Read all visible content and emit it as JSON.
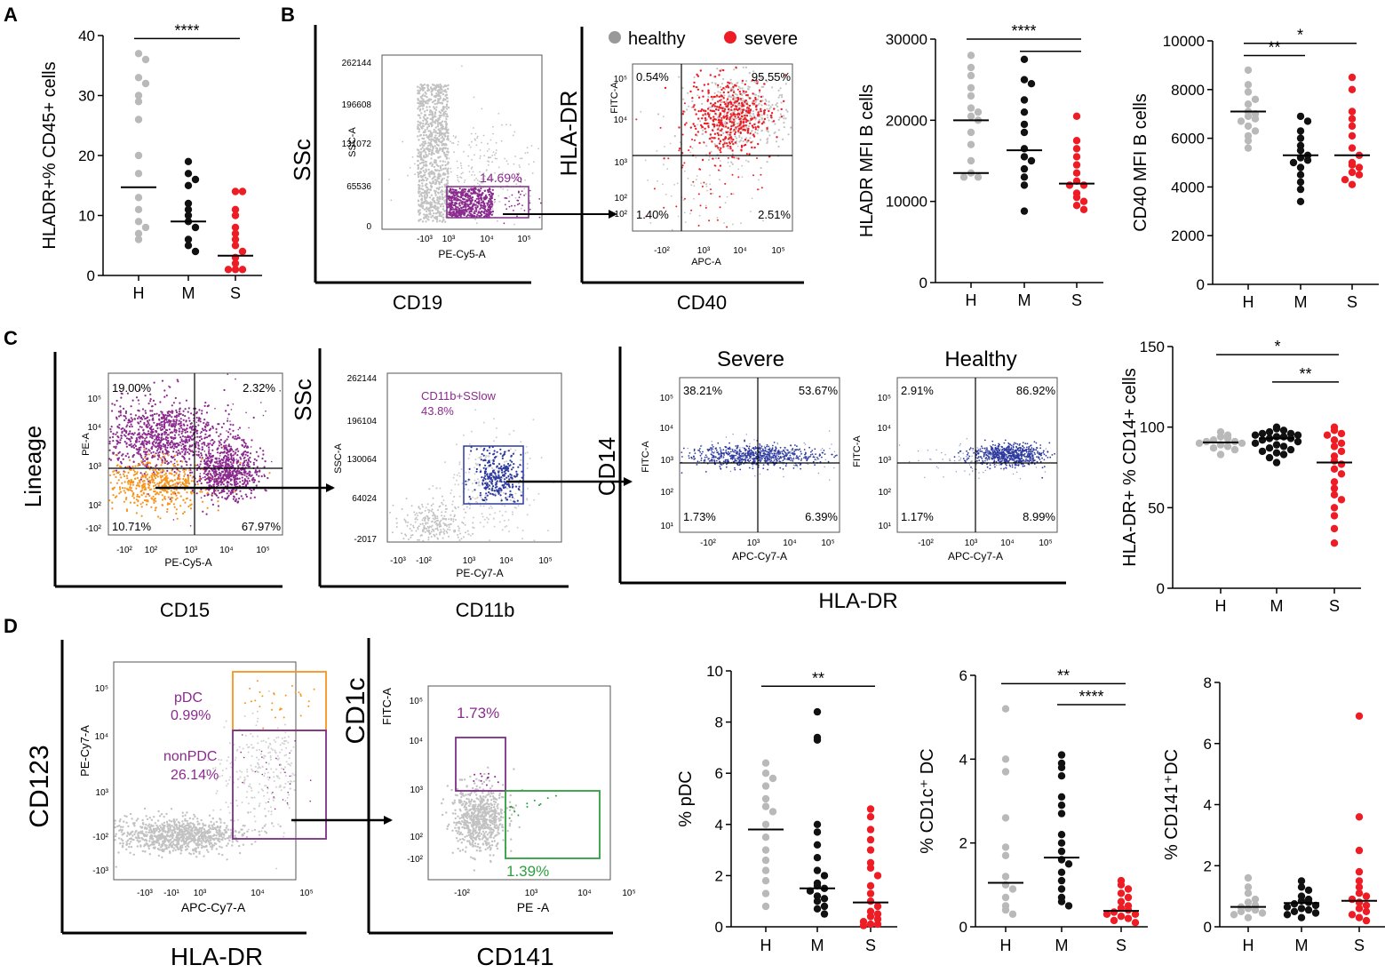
{
  "panel_labels": {
    "A": "A",
    "B": "B",
    "C": "C",
    "D": "D"
  },
  "colors": {
    "healthy": "#b9b9b9",
    "moderate": "#111111",
    "severe": "#ee1c24",
    "purple": "#8b2a8e",
    "orange": "#f7941d",
    "blue": "#2e3a9f",
    "green": "#2e9e3e",
    "gate_purple": "#7d2e86"
  },
  "groups": [
    "H",
    "M",
    "S"
  ],
  "legend": {
    "healthy": "healthy",
    "severe": "severe"
  },
  "flow": {
    "b1": {
      "big_x": "CD19",
      "big_y": "SSc",
      "small_x": "PE-Cy5-A",
      "small_y": "SSC-A",
      "yticks": [
        "262144",
        "196608",
        "131072",
        "65536",
        "0"
      ],
      "xticks": [
        "-10³",
        "10³",
        "10⁴",
        "10⁵"
      ],
      "gate": "14.69%"
    },
    "b2": {
      "big_x": "CD40",
      "big_y": "HLA-DR",
      "small_x": "APC-A",
      "small_y": "FITC-A",
      "quad": [
        "0.54%",
        "95.55%",
        "1.40%",
        "2.51%"
      ],
      "yticks": [
        "10⁵",
        "10⁴",
        "10³",
        "10²",
        "-10²"
      ],
      "xticks": [
        "-10²",
        "10³",
        "10⁴",
        "10⁵"
      ]
    },
    "c1": {
      "big_x": "CD15",
      "big_y": "Lineage",
      "small_x": "PE-Cy5-A",
      "small_y": "PE-A",
      "quad": [
        "19.00%",
        "2.32%",
        "10.71%",
        "67.97%"
      ],
      "yticks": [
        "10⁵",
        "10⁴",
        "10³",
        "10²",
        "-10²"
      ],
      "xticks": [
        "-10²",
        "10²",
        "10³",
        "10⁴",
        "10⁵"
      ]
    },
    "c2": {
      "big_x": "CD11b",
      "big_y": "SSc",
      "small_x": "PE-Cy7-A",
      "small_y": "SSC-A",
      "gate1": "CD11b+SSlow",
      "gate2": "43.8%",
      "yticks": [
        "262144",
        "196104",
        "130064",
        "64024",
        "-2017"
      ],
      "xticks": [
        "-10³",
        "-10²",
        "10³",
        "10⁴",
        "10⁵"
      ]
    },
    "c3": {
      "title": "Severe",
      "small_x": "APC-Cy7-A",
      "small_y": "FITC-A",
      "quad": [
        "38.21%",
        "53.67%",
        "1.73%",
        "6.39%"
      ],
      "yticks": [
        "10⁵",
        "10⁴",
        "10³",
        "10²",
        "10¹"
      ],
      "xticks": [
        "-10²",
        "10³",
        "10⁴",
        "10⁵"
      ]
    },
    "c4": {
      "title": "Healthy",
      "small_x": "APC-Cy7-A",
      "small_y": "FITC-A",
      "quad": [
        "2.91%",
        "86.92%",
        "1.17%",
        "8.99%"
      ],
      "yticks": [
        "10⁵",
        "10⁴",
        "10³",
        "10²",
        "10¹"
      ],
      "xticks": [
        "-10²",
        "10³",
        "10⁴",
        "10⁵"
      ]
    },
    "c_shared": {
      "big_y": "CD14",
      "big_x": "HLA-DR"
    },
    "d1": {
      "big_x": "HLA-DR",
      "big_y": "CD123",
      "small_x": "APC-Cy7-A",
      "small_y": "PE-Cy7-A",
      "pdc1": "pDC",
      "pdc2": "0.99%",
      "npdc1": "nonPDC",
      "npdc2": "26.14%",
      "yticks": [
        "10⁵",
        "10⁴",
        "10³",
        "-10²",
        "-10³"
      ],
      "xticks": [
        "-10³",
        "-10¹",
        "10³",
        "10⁴",
        "10⁵"
      ]
    },
    "d2": {
      "big_x": "CD141",
      "big_y": "CD1c",
      "small_x": "PE -A",
      "small_y": "FITC-A",
      "gate1": "1.73%",
      "gate2": "1.39%",
      "yticks": [
        "10⁵",
        "10⁴",
        "10³",
        "10²",
        "-10²"
      ],
      "xticks": [
        "-10²",
        "10³",
        "10⁴",
        "10⁵"
      ]
    }
  },
  "chart_data": [
    {
      "id": "A",
      "type": "scatter",
      "ylabel": "HLADR+% CD45+ cells",
      "ylim": [
        0,
        40
      ],
      "yticks": [
        "0",
        "10",
        "20",
        "30",
        "40"
      ],
      "series": [
        {
          "name": "H",
          "values": [
            37,
            36,
            33,
            32,
            30,
            29,
            26,
            20,
            17,
            13,
            11,
            9,
            8,
            7,
            6
          ],
          "median": 14.7
        },
        {
          "name": "M",
          "values": [
            19,
            17,
            16,
            15,
            12,
            11,
            10,
            9,
            8,
            6,
            5,
            4
          ],
          "median": 9
        },
        {
          "name": "S",
          "values": [
            14,
            14,
            11,
            10,
            8,
            7,
            6,
            5,
            4,
            3,
            2,
            1,
            1,
            1
          ],
          "median": 3.3
        }
      ],
      "sig": [
        {
          "from": 0,
          "to": 2,
          "label": "****",
          "y": 39.5
        }
      ]
    },
    {
      "id": "B3",
      "type": "scatter",
      "ylabel": "HLADR MFI B cells",
      "ylim": [
        0,
        30000
      ],
      "yticks": [
        "0",
        "10000",
        "20000",
        "30000"
      ],
      "series": [
        {
          "name": "H",
          "values": [
            28000,
            26500,
            25500,
            24000,
            23000,
            21500,
            21000,
            20500,
            20000,
            18500,
            17000,
            15000,
            13500,
            13000,
            13000
          ],
          "median": 20000,
          "median2": 13500
        },
        {
          "name": "M",
          "values": [
            27500,
            25000,
            24500,
            22500,
            21000,
            19500,
            18500,
            16500,
            15500,
            15000,
            14000,
            13000,
            12000,
            8800
          ],
          "median": 16300
        },
        {
          "name": "S",
          "values": [
            20500,
            17500,
            16500,
            15500,
            14500,
            13500,
            12500,
            12000,
            12000,
            11000,
            10500,
            10000,
            9500,
            9000
          ],
          "median": 12200
        }
      ],
      "sig": [
        {
          "from": 0,
          "to": 2,
          "label": "****",
          "y": 30000
        },
        {
          "from": 1,
          "to": 2,
          "label": "",
          "y": 28500
        }
      ]
    },
    {
      "id": "B4",
      "type": "scatter",
      "ylabel": "CD40 MFI B cells",
      "ylim": [
        0,
        10000
      ],
      "yticks": [
        "0",
        "2000",
        "4000",
        "6000",
        "8000",
        "10000"
      ],
      "series": [
        {
          "name": "H",
          "values": [
            8800,
            8200,
            7900,
            7600,
            7400,
            7100,
            7000,
            6900,
            6800,
            6700,
            6500,
            6300,
            6100,
            5900,
            5600
          ],
          "median": 7100
        },
        {
          "name": "M",
          "values": [
            6900,
            6700,
            6300,
            6000,
            5700,
            5500,
            5300,
            5200,
            5100,
            5000,
            4800,
            4500,
            4200,
            3900,
            3400
          ],
          "median": 5300
        },
        {
          "name": "S",
          "values": [
            8500,
            8000,
            7100,
            6800,
            6500,
            6100,
            5600,
            5300,
            5000,
            4900,
            4800,
            4600,
            4500,
            4300,
            4100
          ],
          "median": 5300
        }
      ],
      "sig": [
        {
          "from": 0,
          "to": 1,
          "label": "**",
          "y": 9400
        },
        {
          "from": 0,
          "to": 2,
          "label": "*",
          "y": 9900
        }
      ]
    },
    {
      "id": "C5",
      "type": "scatter",
      "ylabel": "HLA-DR+ % CD14+ cells",
      "ylim": [
        0,
        150
      ],
      "yticks": [
        "0",
        "50",
        "100",
        "150"
      ],
      "series": [
        {
          "name": "H",
          "values": [
            97,
            95,
            94,
            93,
            92,
            91,
            91,
            90,
            90,
            89,
            88,
            87,
            86,
            83
          ],
          "median": 90.5
        },
        {
          "name": "M",
          "values": [
            100,
            99,
            98,
            97,
            96,
            96,
            95,
            95,
            94,
            94,
            93,
            93,
            92,
            91,
            90,
            89,
            88,
            87,
            86,
            85,
            84,
            83,
            81,
            78
          ],
          "median": 93
        },
        {
          "name": "S",
          "values": [
            100,
            98,
            96,
            95,
            92,
            90,
            88,
            85,
            82,
            79,
            77,
            74,
            71,
            66,
            62,
            58,
            55,
            50,
            45,
            37,
            28
          ],
          "median": 78
        }
      ],
      "sig": [
        {
          "from": 0,
          "to": 2,
          "label": "*",
          "y": 145
        },
        {
          "from": 1,
          "to": 2,
          "label": "**",
          "y": 128
        }
      ]
    },
    {
      "id": "D3",
      "type": "scatter",
      "ylabel": "% pDC",
      "ylim": [
        0,
        10
      ],
      "yticks": [
        "0",
        "2",
        "4",
        "6",
        "8",
        "10"
      ],
      "series": [
        {
          "name": "H",
          "values": [
            6.4,
            6.0,
            5.8,
            5.5,
            5.0,
            4.7,
            4.5,
            4.0,
            3.5,
            3.0,
            2.6,
            2.2,
            1.8,
            1.3,
            0.8
          ],
          "median": 3.8
        },
        {
          "name": "M",
          "values": [
            8.4,
            7.4,
            7.3,
            4.0,
            3.7,
            3.2,
            2.7,
            2.2,
            2.0,
            1.7,
            1.6,
            1.5,
            1.4,
            1.2,
            1.1,
            1.0,
            0.8,
            0.7,
            0.5
          ],
          "median": 1.5
        },
        {
          "name": "S",
          "values": [
            4.6,
            4.3,
            3.8,
            3.4,
            3.0,
            2.5,
            2.3,
            2.0,
            1.6,
            1.3,
            1.0,
            0.8,
            0.6,
            0.5,
            0.4,
            0.3,
            0.2,
            0.1,
            0.1,
            0.05
          ],
          "median": 0.95
        }
      ],
      "sig": [
        {
          "from": 0,
          "to": 2,
          "label": "**",
          "y": 9.4
        }
      ]
    },
    {
      "id": "D4",
      "type": "scatter",
      "ylabel": "% CD1c⁺ DC",
      "ylim": [
        0,
        6
      ],
      "yticks": [
        "0",
        "2",
        "4",
        "6"
      ],
      "series": [
        {
          "name": "H",
          "values": [
            5.2,
            4.0,
            3.7,
            2.6,
            1.9,
            1.7,
            1.2,
            1.0,
            0.9,
            0.7,
            0.5,
            0.4,
            0.3
          ],
          "median": 1.05
        },
        {
          "name": "M",
          "values": [
            4.1,
            3.9,
            3.8,
            3.6,
            3.1,
            2.9,
            2.7,
            2.2,
            2.0,
            1.8,
            1.6,
            1.5,
            1.3,
            1.1,
            0.9,
            0.7,
            0.6,
            0.5
          ],
          "median": 1.65
        },
        {
          "name": "S",
          "values": [
            1.1,
            1.0,
            0.9,
            0.8,
            0.7,
            0.6,
            0.5,
            0.45,
            0.4,
            0.35,
            0.3,
            0.3,
            0.25,
            0.2,
            0.15,
            0.1
          ],
          "median": 0.38
        }
      ],
      "sig": [
        {
          "from": 0,
          "to": 2,
          "label": "**",
          "y": 5.8
        },
        {
          "from": 1,
          "to": 2,
          "label": "****",
          "y": 5.3
        }
      ]
    },
    {
      "id": "D5",
      "type": "scatter",
      "ylabel": "% CD141⁺DC",
      "ylim": [
        0,
        8
      ],
      "yticks": [
        "0",
        "2",
        "4",
        "6",
        "8"
      ],
      "series": [
        {
          "name": "H",
          "values": [
            1.6,
            1.3,
            1.1,
            0.9,
            0.8,
            0.7,
            0.65,
            0.6,
            0.55,
            0.5,
            0.45,
            0.4,
            0.3
          ],
          "median": 0.65
        },
        {
          "name": "M",
          "values": [
            1.5,
            1.3,
            1.2,
            1.0,
            0.9,
            0.85,
            0.8,
            0.75,
            0.7,
            0.65,
            0.6,
            0.55,
            0.5,
            0.45,
            0.4,
            0.3
          ],
          "median": 0.78
        },
        {
          "name": "S",
          "values": [
            6.9,
            3.6,
            2.5,
            1.8,
            1.5,
            1.3,
            1.1,
            1.0,
            0.9,
            0.8,
            0.7,
            0.6,
            0.5,
            0.4,
            0.3,
            0.2
          ],
          "median": 0.85
        }
      ],
      "sig": []
    }
  ]
}
